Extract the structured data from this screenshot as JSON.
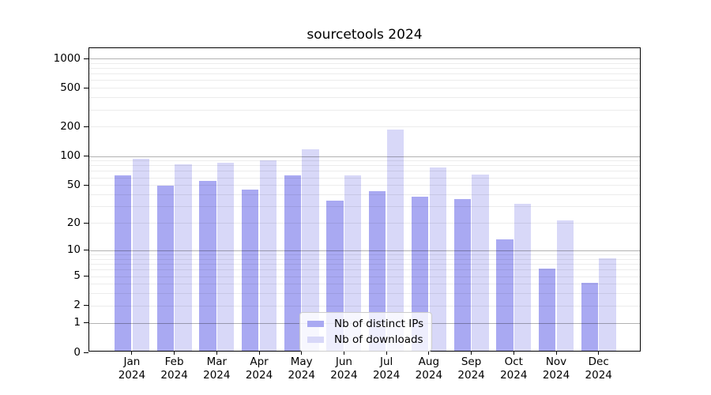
{
  "figure": {
    "title": "sourcetools 2024"
  },
  "legend": {
    "items": [
      {
        "label": "Nb of distinct IPs",
        "series": "ips"
      },
      {
        "label": "Nb of downloads",
        "series": "downloads"
      }
    ]
  },
  "colors": {
    "ips_bar": "#a9a9f2",
    "downloads_bar": "#d8d8f8",
    "major_grid": "rgba(0,0,0,0.30)",
    "minor_grid": "rgba(0,0,0,0.075)",
    "legend_border": "#cccccc",
    "text": "#000000"
  },
  "chart_data": {
    "type": "bar",
    "title": "sourcetools 2024",
    "categories": [
      "Jan 2024",
      "Feb 2024",
      "Mar 2024",
      "Apr 2024",
      "May 2024",
      "Jun 2024",
      "Jul 2024",
      "Aug 2024",
      "Sep 2024",
      "Oct 2024",
      "Nov 2024",
      "Dec 2024"
    ],
    "series": [
      {
        "name": "Nb of distinct IPs",
        "key": "ips",
        "values": [
          62,
          48,
          54,
          44,
          62,
          34,
          42,
          37,
          35,
          13,
          6,
          4
        ]
      },
      {
        "name": "Nb of downloads",
        "key": "downloads",
        "values": [
          92,
          81,
          83,
          89,
          115,
          62,
          185,
          75,
          63,
          31,
          21,
          8
        ]
      }
    ],
    "xlabel": "",
    "ylabel": "",
    "yscale": "log1p",
    "ylim": [
      0,
      1290
    ],
    "yticks": [
      0,
      1,
      2,
      5,
      10,
      20,
      50,
      100,
      200,
      500,
      1000
    ],
    "major_gridlines": [
      1,
      10,
      100,
      1000
    ],
    "minor_gridlines": [
      2,
      3,
      4,
      5,
      6,
      7,
      8,
      9,
      20,
      30,
      40,
      50,
      60,
      70,
      80,
      90,
      200,
      300,
      400,
      500,
      600,
      700,
      800,
      900
    ],
    "grid": true,
    "legend_position": "lower center inside plot"
  }
}
